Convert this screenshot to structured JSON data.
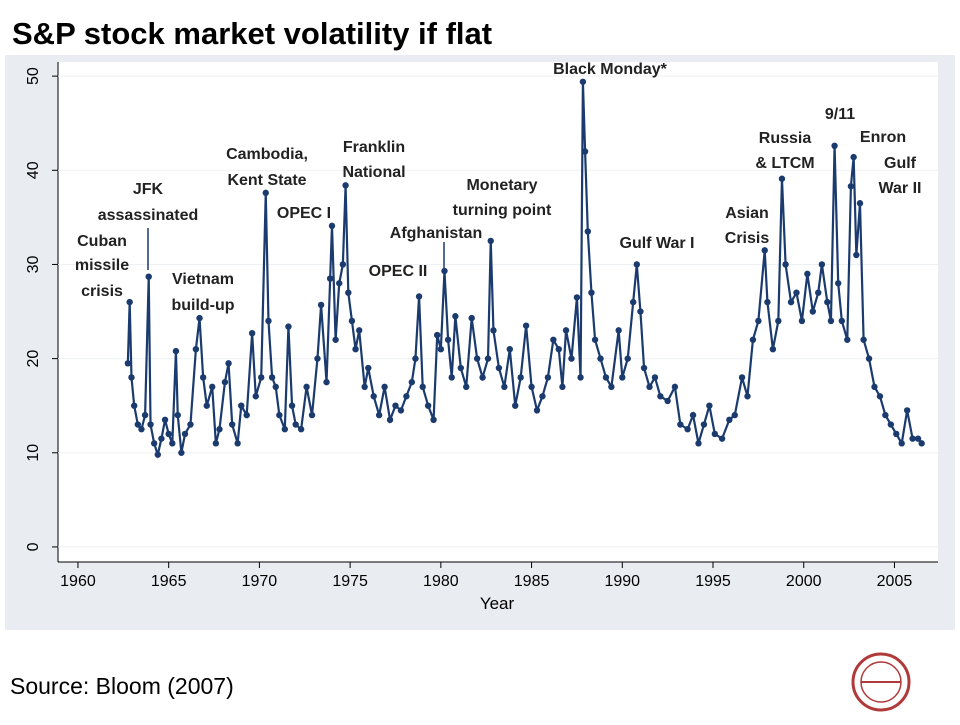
{
  "chart_data": {
    "type": "line",
    "title": "S&P stock market volatility if flat",
    "x_label": "Year",
    "source": "Source: Bloom (2007)",
    "xlim": [
      1958.9,
      2007.4
    ],
    "ylim": [
      -1.6,
      51.5
    ],
    "xticks": [
      1960,
      1965,
      1970,
      1975,
      1980,
      1985,
      1990,
      1995,
      2000,
      2005
    ],
    "yticks": [
      0,
      10,
      20,
      30,
      40,
      50
    ],
    "grid": true,
    "series": [
      {
        "color": "#1b3b6f",
        "x": [
          1962.75,
          1962.85,
          1962.95,
          1963.1,
          1963.3,
          1963.5,
          1963.7,
          1963.9,
          1964.0,
          1964.2,
          1964.4,
          1964.6,
          1964.8,
          1965.0,
          1965.2,
          1965.4,
          1965.5,
          1965.7,
          1965.9,
          1966.2,
          1966.5,
          1966.7,
          1966.9,
          1967.1,
          1967.4,
          1967.6,
          1967.8,
          1968.1,
          1968.3,
          1968.5,
          1968.8,
          1969.0,
          1969.3,
          1969.6,
          1969.8,
          1970.1,
          1970.35,
          1970.5,
          1970.7,
          1970.9,
          1971.1,
          1971.4,
          1971.6,
          1971.8,
          1972.0,
          1972.3,
          1972.6,
          1972.9,
          1973.2,
          1973.4,
          1973.7,
          1973.9,
          1974.0,
          1974.2,
          1974.4,
          1974.6,
          1974.75,
          1974.9,
          1975.1,
          1975.3,
          1975.5,
          1975.8,
          1976.0,
          1976.3,
          1976.6,
          1976.9,
          1977.2,
          1977.5,
          1977.8,
          1978.1,
          1978.4,
          1978.6,
          1978.8,
          1979.0,
          1979.3,
          1979.6,
          1979.8,
          1980.0,
          1980.2,
          1980.4,
          1980.6,
          1980.8,
          1981.1,
          1981.4,
          1981.7,
          1982.0,
          1982.3,
          1982.6,
          1982.75,
          1982.9,
          1983.2,
          1983.5,
          1983.8,
          1984.1,
          1984.4,
          1984.7,
          1985.0,
          1985.3,
          1985.6,
          1985.9,
          1986.2,
          1986.5,
          1986.7,
          1986.9,
          1987.2,
          1987.5,
          1987.7,
          1987.83,
          1987.95,
          1988.1,
          1988.3,
          1988.5,
          1988.8,
          1989.1,
          1989.4,
          1989.8,
          1990.0,
          1990.3,
          1990.6,
          1990.8,
          1991.0,
          1991.2,
          1991.5,
          1991.8,
          1992.1,
          1992.5,
          1992.9,
          1993.2,
          1993.6,
          1993.9,
          1994.2,
          1994.5,
          1994.8,
          1995.1,
          1995.5,
          1995.9,
          1996.2,
          1996.6,
          1996.9,
          1997.2,
          1997.5,
          1997.85,
          1998.0,
          1998.3,
          1998.6,
          1998.8,
          1999.0,
          1999.3,
          1999.6,
          1999.9,
          2000.2,
          2000.5,
          2000.8,
          2001.0,
          2001.3,
          2001.5,
          2001.7,
          2001.9,
          2002.1,
          2002.4,
          2002.6,
          2002.75,
          2002.9,
          2003.1,
          2003.3,
          2003.6,
          2003.9,
          2004.2,
          2004.5,
          2004.8,
          2005.1,
          2005.4,
          2005.7,
          2006.0,
          2006.3,
          2006.5
        ],
        "values": [
          19.5,
          26,
          18,
          15,
          13,
          12.5,
          14,
          28.7,
          13,
          11,
          9.8,
          11.5,
          13.5,
          12,
          11,
          20.8,
          14,
          10,
          12,
          13,
          21,
          24.3,
          18,
          15,
          17,
          11,
          12.5,
          17.5,
          19.5,
          13,
          11,
          15,
          14,
          22.7,
          16,
          18,
          37.6,
          24,
          18,
          17,
          14,
          12.5,
          23.4,
          15,
          13,
          12.5,
          17,
          14,
          20,
          25.7,
          17.5,
          28.5,
          34.1,
          22,
          28,
          30,
          38.4,
          27,
          24,
          21,
          23,
          17,
          19,
          16,
          14,
          17,
          13.5,
          15,
          14.5,
          16,
          17.5,
          20,
          26.6,
          17,
          15,
          13.5,
          22.5,
          21,
          29.3,
          22,
          18,
          24.5,
          19,
          17,
          24.3,
          20,
          18,
          20,
          32.5,
          23,
          19,
          17,
          21,
          15,
          18,
          23.5,
          17,
          14.5,
          16,
          18,
          22,
          21,
          17,
          23,
          20,
          26.5,
          18,
          49.4,
          42,
          33.5,
          27,
          22,
          20,
          18,
          17,
          23,
          18,
          20,
          26,
          30,
          25,
          19,
          17,
          18,
          16,
          15.5,
          17,
          13,
          12.5,
          14,
          11,
          13,
          15,
          12,
          11.5,
          13.5,
          14,
          18,
          16,
          22,
          24,
          31.5,
          26,
          21,
          24,
          39.1,
          30,
          26,
          27,
          24,
          29,
          25,
          27,
          30,
          26,
          24,
          42.6,
          28,
          24,
          22,
          38.3,
          41.4,
          31,
          36.5,
          22,
          20,
          17,
          16,
          14,
          13,
          12,
          11,
          14.5,
          11.5,
          11.5,
          11
        ]
      }
    ],
    "annotations": [
      {
        "lines": [
          "Cuban",
          "missile",
          "crisis"
        ]
      },
      {
        "lines": [
          "JFK",
          "assassinated"
        ]
      },
      {
        "lines": [
          "Vietnam",
          "build-up"
        ]
      },
      {
        "lines": [
          "Cambodia,",
          "Kent State"
        ]
      },
      {
        "lines": [
          "OPEC I"
        ]
      },
      {
        "lines": [
          "Franklin",
          "National"
        ]
      },
      {
        "lines": [
          "Afghanistan"
        ]
      },
      {
        "lines": [
          "OPEC II"
        ]
      },
      {
        "lines": [
          "Monetary",
          "turning point"
        ]
      },
      {
        "lines": [
          "Black Monday*"
        ]
      },
      {
        "lines": [
          "Gulf War I"
        ]
      },
      {
        "lines": [
          "Asian",
          "Crisis"
        ]
      },
      {
        "lines": [
          "Russia",
          "& LTCM"
        ]
      },
      {
        "lines": [
          "9/11"
        ]
      },
      {
        "lines": [
          "Enron"
        ]
      },
      {
        "lines": [
          "Gulf",
          "War II"
        ]
      }
    ]
  }
}
